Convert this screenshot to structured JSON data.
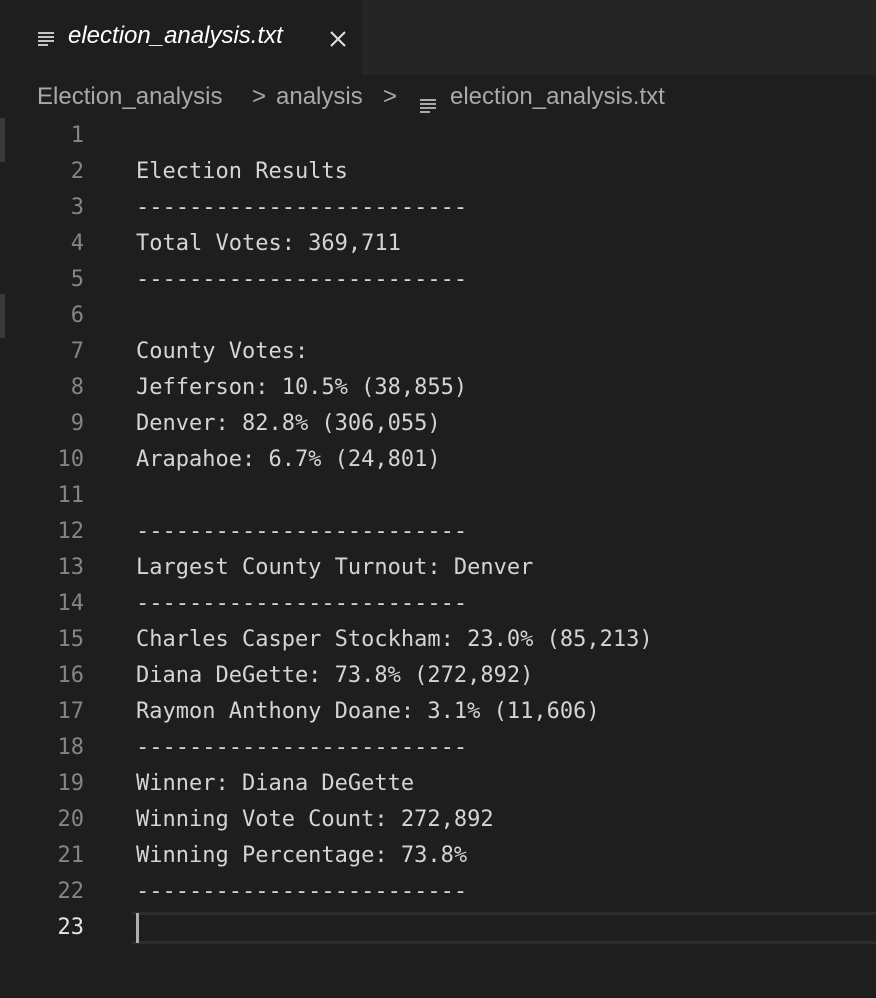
{
  "tab": {
    "title": "election_analysis.txt",
    "file_icon": "lines-file-icon",
    "close_icon": "close-icon"
  },
  "breadcrumb": {
    "items": [
      "Election_analysis",
      "analysis",
      "election_analysis.txt"
    ],
    "separator": ">"
  },
  "editor": {
    "active_line": 23,
    "lines": [
      {
        "n": "1",
        "text": ""
      },
      {
        "n": "2",
        "text": "Election Results"
      },
      {
        "n": "3",
        "text": "-------------------------"
      },
      {
        "n": "4",
        "text": "Total Votes: 369,711"
      },
      {
        "n": "5",
        "text": "-------------------------"
      },
      {
        "n": "6",
        "text": ""
      },
      {
        "n": "7",
        "text": "County Votes:"
      },
      {
        "n": "8",
        "text": "Jefferson: 10.5% (38,855)"
      },
      {
        "n": "9",
        "text": "Denver: 82.8% (306,055)"
      },
      {
        "n": "10",
        "text": "Arapahoe: 6.7% (24,801)"
      },
      {
        "n": "11",
        "text": ""
      },
      {
        "n": "12",
        "text": "-------------------------"
      },
      {
        "n": "13",
        "text": "Largest County Turnout: Denver"
      },
      {
        "n": "14",
        "text": "-------------------------"
      },
      {
        "n": "15",
        "text": "Charles Casper Stockham: 23.0% (85,213)"
      },
      {
        "n": "16",
        "text": "Diana DeGette: 73.8% (272,892)"
      },
      {
        "n": "17",
        "text": "Raymon Anthony Doane: 3.1% (11,606)"
      },
      {
        "n": "18",
        "text": "-------------------------"
      },
      {
        "n": "19",
        "text": "Winner: Diana DeGette"
      },
      {
        "n": "20",
        "text": "Winning Vote Count: 272,892"
      },
      {
        "n": "21",
        "text": "Winning Percentage: 73.8%"
      },
      {
        "n": "22",
        "text": "-------------------------"
      },
      {
        "n": "23",
        "text": ""
      }
    ]
  },
  "colors": {
    "background": "#1e1e1e",
    "tabbar": "#252526",
    "text": "#d4d4d4",
    "line_number": "#858585"
  }
}
